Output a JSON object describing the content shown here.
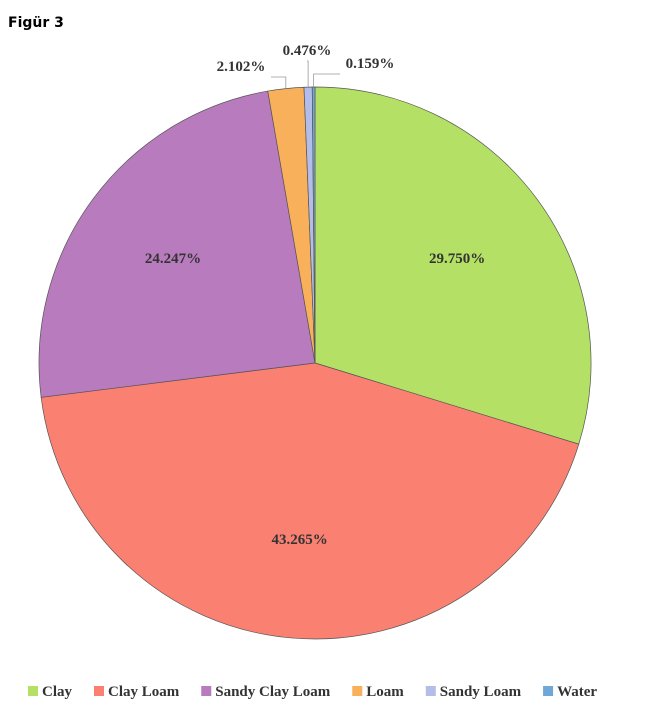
{
  "header": {
    "title": "Figür 3"
  },
  "chart_data": {
    "type": "pie",
    "categories": [
      "Clay",
      "Clay Loam",
      "Sandy Clay Loam",
      "Loam",
      "Sandy Loam",
      "Water"
    ],
    "values": [
      29.75,
      43.265,
      24.247,
      2.102,
      0.476,
      0.159
    ],
    "value_labels": [
      "29.750%",
      "43.265%",
      "24.247%",
      "2.102%",
      "0.476%",
      "0.159%"
    ],
    "colors": [
      "#b3e065",
      "#fa8072",
      "#b87bbd",
      "#f9b05a",
      "#b4bce8",
      "#6fa8d6"
    ],
    "legend": "bottom"
  }
}
